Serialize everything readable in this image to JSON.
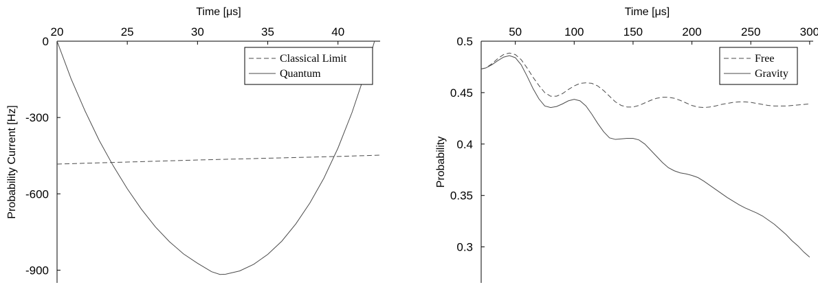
{
  "chart_data": [
    {
      "type": "line",
      "xlabel": "Time [μs]",
      "ylabel": "Probability Current [Hz]",
      "x_axis_position": "top",
      "xlim": [
        20,
        43
      ],
      "ylim": [
        -950,
        0
      ],
      "y_reversed": true,
      "xticks": [
        20,
        25,
        30,
        35,
        40
      ],
      "yticks": [
        0,
        -300,
        -600,
        -900
      ],
      "xtick_labels": [
        "20",
        "25",
        "30",
        "35",
        "40"
      ],
      "ytick_labels": [
        "0",
        "-300",
        "-600",
        "-900"
      ],
      "legend": {
        "position": "top-right",
        "entries": [
          "Classical Limit",
          "Quantum"
        ]
      },
      "series": [
        {
          "name": "Classical Limit",
          "style": "dashed",
          "x": [
            20,
            25,
            30,
            35,
            40,
            43
          ],
          "y": [
            -483,
            -475,
            -467,
            -460,
            -453,
            -448
          ]
        },
        {
          "name": "Quantum",
          "style": "solid",
          "x": [
            20,
            21,
            22,
            23,
            24,
            25,
            26,
            27,
            28,
            29,
            30,
            31,
            31.6,
            32,
            33,
            34,
            35,
            36,
            37,
            38,
            39,
            40,
            41,
            42,
            42.6
          ],
          "y": [
            0,
            -148,
            -275,
            -390,
            -490,
            -580,
            -660,
            -730,
            -788,
            -836,
            -873,
            -906,
            -917,
            -916,
            -903,
            -877,
            -838,
            -786,
            -718,
            -636,
            -538,
            -420,
            -280,
            -115,
            0
          ]
        }
      ]
    },
    {
      "type": "line",
      "xlabel": "Time [μs]",
      "ylabel": "Probability",
      "x_axis_position": "top",
      "xlim": [
        21,
        303
      ],
      "ylim": [
        0.265,
        0.5
      ],
      "xticks": [
        50,
        100,
        150,
        200,
        250,
        300
      ],
      "yticks": [
        0.5,
        0.45,
        0.4,
        0.35,
        0.3
      ],
      "xtick_labels": [
        "50",
        "100",
        "150",
        "200",
        "250",
        "300"
      ],
      "ytick_labels": [
        "0.5",
        "0.45",
        "0.4",
        "0.35",
        "0.3"
      ],
      "legend": {
        "position": "top-right",
        "entries": [
          "Free",
          "Gravity"
        ]
      },
      "series": [
        {
          "name": "Free",
          "style": "dashed",
          "x": [
            21,
            25,
            30,
            35,
            40,
            45,
            50,
            55,
            60,
            65,
            70,
            75,
            80,
            85,
            90,
            95,
            100,
            105,
            110,
            115,
            120,
            125,
            130,
            135,
            140,
            145,
            150,
            155,
            160,
            165,
            170,
            175,
            180,
            185,
            190,
            195,
            200,
            205,
            210,
            215,
            220,
            225,
            230,
            235,
            240,
            245,
            250,
            255,
            260,
            265,
            270,
            275,
            280,
            285,
            290,
            295,
            300
          ],
          "y": [
            0.473,
            0.474,
            0.478,
            0.483,
            0.487,
            0.4885,
            0.487,
            0.482,
            0.474,
            0.465,
            0.457,
            0.45,
            0.4465,
            0.4465,
            0.449,
            0.453,
            0.4565,
            0.459,
            0.4595,
            0.459,
            0.4565,
            0.452,
            0.4465,
            0.441,
            0.4375,
            0.436,
            0.436,
            0.4375,
            0.44,
            0.4425,
            0.4445,
            0.4455,
            0.4455,
            0.4445,
            0.4425,
            0.44,
            0.4375,
            0.436,
            0.4355,
            0.436,
            0.437,
            0.4385,
            0.4395,
            0.4405,
            0.441,
            0.441,
            0.4405,
            0.4395,
            0.4385,
            0.4375,
            0.437,
            0.437,
            0.437,
            0.4375,
            0.438,
            0.4385,
            0.439
          ]
        },
        {
          "name": "Gravity",
          "style": "solid",
          "x": [
            21,
            25,
            30,
            35,
            40,
            45,
            50,
            55,
            60,
            65,
            70,
            75,
            80,
            85,
            90,
            95,
            100,
            105,
            110,
            115,
            120,
            125,
            130,
            135,
            140,
            145,
            150,
            155,
            160,
            165,
            170,
            175,
            180,
            185,
            190,
            195,
            200,
            205,
            210,
            215,
            220,
            225,
            230,
            235,
            240,
            245,
            250,
            255,
            260,
            265,
            270,
            275,
            280,
            285,
            290,
            295,
            300
          ],
          "y": [
            0.473,
            0.474,
            0.477,
            0.481,
            0.4845,
            0.486,
            0.484,
            0.477,
            0.466,
            0.454,
            0.444,
            0.437,
            0.4355,
            0.4365,
            0.439,
            0.442,
            0.4435,
            0.442,
            0.437,
            0.429,
            0.42,
            0.412,
            0.406,
            0.4045,
            0.405,
            0.4055,
            0.4055,
            0.404,
            0.4,
            0.394,
            0.388,
            0.382,
            0.377,
            0.374,
            0.372,
            0.371,
            0.3695,
            0.3675,
            0.364,
            0.36,
            0.356,
            0.352,
            0.348,
            0.3445,
            0.341,
            0.338,
            0.3355,
            0.333,
            0.33,
            0.326,
            0.322,
            0.317,
            0.312,
            0.306,
            0.301,
            0.295,
            0.29
          ]
        }
      ]
    }
  ]
}
